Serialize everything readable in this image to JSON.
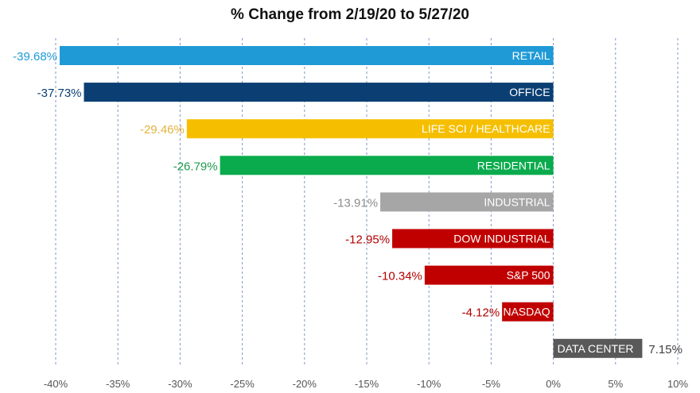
{
  "chart_data": {
    "type": "bar",
    "orientation": "horizontal",
    "title": "% Change from 2/19/20 to 5/27/20",
    "xlabel": "",
    "ylabel": "",
    "xlim": [
      -40,
      10
    ],
    "x_ticks": [
      -40,
      -35,
      -30,
      -25,
      -20,
      -15,
      -10,
      -5,
      0,
      5,
      10
    ],
    "x_tick_labels": [
      "-40%",
      "-35%",
      "-30%",
      "-25%",
      "-20%",
      "-15%",
      "-10%",
      "-5%",
      "0%",
      "5%",
      "10%"
    ],
    "grid": "vertical dashed",
    "legend": "none",
    "categories": [
      "RETAIL",
      "OFFICE",
      "LIFE SCI / HEALTHCARE",
      "RESIDENTIAL",
      "INDUSTRIAL",
      "DOW INDUSTRIAL",
      "S&P 500",
      "NASDAQ",
      "DATA CENTER"
    ],
    "values": [
      -39.68,
      -37.73,
      -29.46,
      -26.79,
      -13.91,
      -12.95,
      -10.34,
      -4.12,
      7.15
    ],
    "value_labels": [
      "-39.68%",
      "-37.73%",
      "-29.46%",
      "-26.79%",
      "-13.91%",
      "-12.95%",
      "-10.34%",
      "-4.12%",
      "7.15%"
    ],
    "colors": [
      "#1f9ad6",
      "#0b3f73",
      "#f5bf00",
      "#0aab4c",
      "#a6a6a6",
      "#c00000",
      "#c00000",
      "#c00000",
      "#595959"
    ],
    "value_label_colors": [
      "#1f9ad6",
      "#0b3f73",
      "#e3b23c",
      "#1f9a4c",
      "#8c8c8c",
      "#b00000",
      "#b00000",
      "#b00000",
      "#404040"
    ]
  }
}
